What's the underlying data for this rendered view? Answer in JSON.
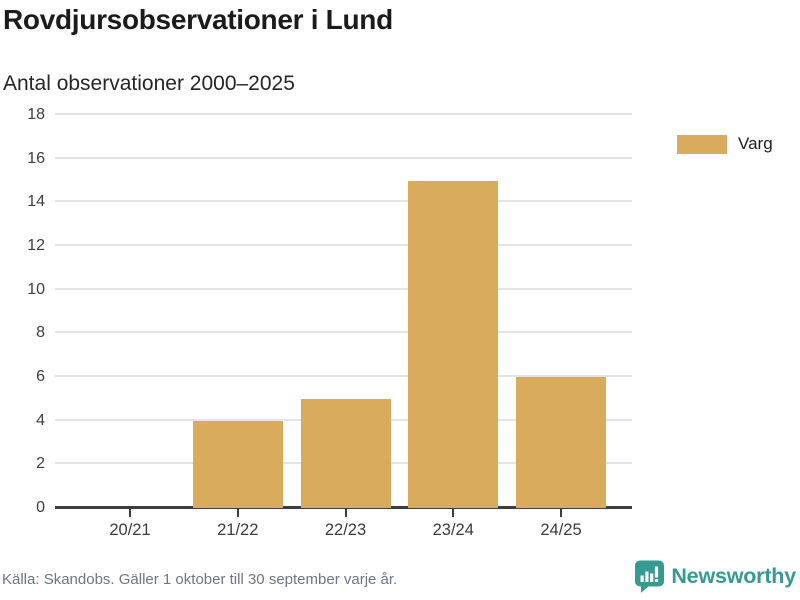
{
  "header": {
    "title": "Rovdjursobservationer i Lund",
    "subtitle": "Antal observationer 2000–2025"
  },
  "legend": {
    "items": [
      {
        "label": "Varg",
        "color": "#d9ab5c"
      }
    ]
  },
  "chart_data": {
    "type": "bar",
    "title": "Rovdjursobservationer i Lund",
    "subtitle": "Antal observationer 2000–2025",
    "categories": [
      "20/21",
      "21/22",
      "22/23",
      "23/24",
      "24/25"
    ],
    "series": [
      {
        "name": "Varg",
        "values": [
          0,
          4,
          5,
          15,
          6
        ],
        "color": "#d9ab5c"
      }
    ],
    "xlabel": "",
    "ylabel": "Antal observationer",
    "ylim": [
      0,
      18
    ],
    "yticks": [
      0,
      2,
      4,
      6,
      8,
      10,
      12,
      14,
      16,
      18
    ],
    "grid": "horizontal",
    "legend_position": "right"
  },
  "footer": {
    "source": "Källa: Skandobs. Gäller 1 oktober till 30 september varje år.",
    "brand": "Newsworthy"
  },
  "colors": {
    "bar": "#d9ab5c",
    "axis": "#3d3d3d",
    "grid": "#e4e4e6",
    "tick_text": "#3b3b3b",
    "title_text": "#1b1b1b",
    "muted_text": "#6e7583",
    "brand_teal": "#379a91"
  }
}
